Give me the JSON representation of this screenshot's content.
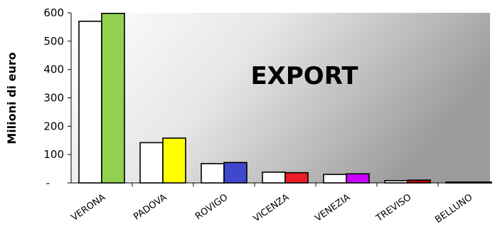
{
  "chart_data": {
    "type": "bar",
    "title": "EXPORT",
    "ylabel": "Milioni di euro",
    "ylim": [
      0,
      600
    ],
    "yticks": [
      {
        "value": 600,
        "label": "600"
      },
      {
        "value": 500,
        "label": "500"
      },
      {
        "value": 400,
        "label": "400"
      },
      {
        "value": 300,
        "label": "300"
      },
      {
        "value": 200,
        "label": "200"
      },
      {
        "value": 100,
        "label": "100"
      },
      {
        "value": 0,
        "label": "-"
      }
    ],
    "categories": [
      "VERONA",
      "PADOVA",
      "ROVIGO",
      "VICENZA",
      "VENEZIA",
      "TREVISO",
      "BELLUNO"
    ],
    "series": [
      {
        "values": [
          570,
          142,
          68,
          38,
          30,
          8,
          3
        ],
        "colors": [
          "#ffffff",
          "#ffffff",
          "#ffffff",
          "#ffffff",
          "#ffffff",
          "#ffffff",
          "#ffffff"
        ]
      },
      {
        "values": [
          598,
          158,
          72,
          36,
          32,
          10,
          3
        ],
        "colors": [
          "#92d050",
          "#ffff00",
          "#3f48cc",
          "#ed1c24",
          "#cc00ff",
          "#c00000",
          "#ffffff"
        ]
      }
    ],
    "grid": false,
    "background": "gradient-grey"
  }
}
